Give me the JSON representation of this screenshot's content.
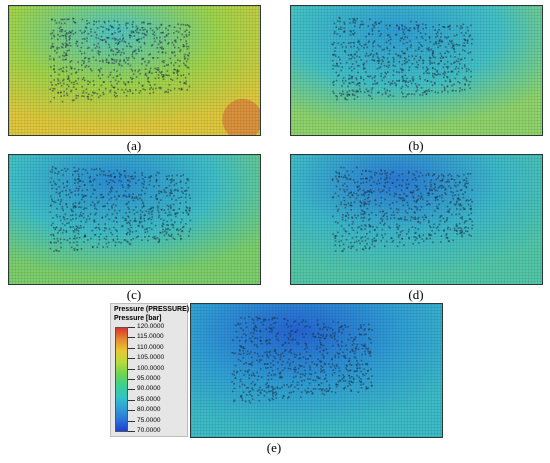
{
  "panels": [
    {
      "id": "a",
      "caption": "(a)",
      "colors": {
        "field": "#9fd54a",
        "hot": "#e0c83a",
        "cool": "#4fc7c4",
        "peak": "#d9663b"
      }
    },
    {
      "id": "b",
      "caption": "(b)",
      "colors": {
        "field": "#42c1c7",
        "hot": "#8fd36a",
        "cool": "#2f9fd6"
      }
    },
    {
      "id": "c",
      "caption": "(c)",
      "colors": {
        "field": "#3fc0c8",
        "hot": "#7ccf6a",
        "cool": "#2b8ed6"
      }
    },
    {
      "id": "d",
      "caption": "(d)",
      "colors": {
        "field": "#3cb9cb",
        "hot": "#52c7a8",
        "cool": "#2a7bd8"
      }
    },
    {
      "id": "e",
      "caption": "(e)",
      "colors": {
        "field": "#2f9fd6",
        "hot": "#3cbcc6",
        "cool": "#2464d6"
      }
    }
  ],
  "legend": {
    "title": "Pressure (PRESSURE)",
    "subtitle": "Pressure [bar]",
    "ticks": [
      "120.0000",
      "115.0000",
      "110.0000",
      "105.0000",
      "100.0000",
      "95.0000",
      "90.0000",
      "85.0000",
      "80.0000",
      "75.0000",
      "70.0000"
    ],
    "colors": [
      "#d9362b",
      "#e58a2e",
      "#e8c832",
      "#b8db3a",
      "#6fd34f",
      "#3fd08f",
      "#33c4c4",
      "#2f9fd6",
      "#2a74d8",
      "#1f3fd6"
    ]
  }
}
